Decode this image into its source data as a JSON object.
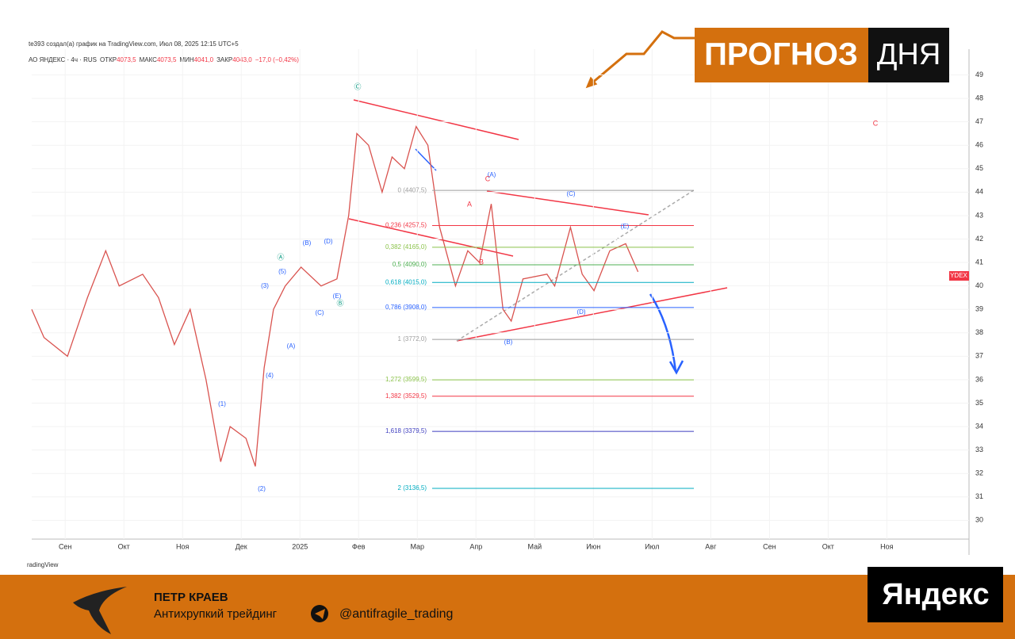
{
  "header": {
    "credit": "te393 создал(а) график на TradingView.com, Июл 08, 2025 12:15 UTC+5",
    "symbol": "АО ЯНДЕКС · 4ч · RUS",
    "ohlc": [
      {
        "label": "ОТКР",
        "value": "4073,5"
      },
      {
        "label": "МАКС",
        "value": "4073,5"
      },
      {
        "label": "МИН",
        "value": "4041,0"
      },
      {
        "label": "ЗАКР",
        "value": "4043,0"
      }
    ],
    "change": "−17,0 (−0,42%)",
    "source": "radingView"
  },
  "banner": {
    "left": "ПРОГНОЗ",
    "right": "ДНЯ"
  },
  "chart_data": {
    "type": "line",
    "color": "#d9534f",
    "price_tag": "YDEX",
    "x": [
      -0.57,
      -0.36,
      0.04,
      0.38,
      0.69,
      0.92,
      1.32,
      1.59,
      1.86,
      2.13,
      2.4,
      2.65,
      2.81,
      3.08,
      3.24,
      3.39,
      3.55,
      3.75,
      4.02,
      4.36,
      4.63,
      4.83,
      4.97,
      5.17,
      5.4,
      5.57,
      5.78,
      5.98,
      6.18,
      6.38,
      6.65,
      6.86,
      7.06,
      7.26,
      7.46,
      7.6,
      7.8,
      8.21,
      8.34,
      8.61,
      8.81,
      9.01,
      9.28,
      9.55,
      9.76
    ],
    "values": [
      39.0,
      37.8,
      37.0,
      39.5,
      41.5,
      40.0,
      40.5,
      39.5,
      37.5,
      39.0,
      36.0,
      32.5,
      34.0,
      33.5,
      32.3,
      36.5,
      39.0,
      40.0,
      40.8,
      40.0,
      40.3,
      43.0,
      46.5,
      46.0,
      44.0,
      45.5,
      45.0,
      46.8,
      46.0,
      42.5,
      40.0,
      41.5,
      41.0,
      43.5,
      39.0,
      38.5,
      40.3,
      40.5,
      40.0,
      42.5,
      40.5,
      39.8,
      41.5,
      41.8,
      40.6
    ],
    "xlim": [
      -0.57,
      15.4
    ],
    "ylim": [
      29.2,
      50.1
    ],
    "xticks": [
      {
        "value": 0,
        "label": "Сен"
      },
      {
        "value": 1,
        "label": "Окт"
      },
      {
        "value": 2,
        "label": "Ноя"
      },
      {
        "value": 3,
        "label": "Дек"
      },
      {
        "value": 4,
        "label": "2025"
      },
      {
        "value": 5,
        "label": "Фев"
      },
      {
        "value": 6,
        "label": "Мар"
      },
      {
        "value": 7,
        "label": "Апр"
      },
      {
        "value": 8,
        "label": "Май"
      },
      {
        "value": 9,
        "label": "Июн"
      },
      {
        "value": 10,
        "label": "Июл"
      },
      {
        "value": 11,
        "label": "Авг"
      },
      {
        "value": 12,
        "label": "Сен"
      },
      {
        "value": 13,
        "label": "Окт"
      },
      {
        "value": 14,
        "label": "Ноя"
      }
    ],
    "yticks": [
      30,
      31,
      32,
      33,
      34,
      35,
      36,
      37,
      38,
      39,
      40,
      41,
      42,
      43,
      44,
      45,
      46,
      47,
      48,
      49
    ],
    "fib_levels": [
      {
        "value": 44.075,
        "label": "0 (4407,5)",
        "color": "#9e9e9e"
      },
      {
        "value": 42.575,
        "label": "0,236 (4257,5)",
        "color": "#f23645"
      },
      {
        "value": 41.65,
        "label": "0,382 (4165,0)",
        "color": "#8bc34a"
      },
      {
        "value": 40.9,
        "label": "0,5 (4090,0)",
        "color": "#4caf50"
      },
      {
        "value": 40.15,
        "label": "0,618 (4015,0)",
        "color": "#00acc1"
      },
      {
        "value": 39.08,
        "label": "0,786 (3908,0)",
        "color": "#2962ff"
      },
      {
        "value": 37.72,
        "label": "1 (3772,0)",
        "color": "#9e9e9e"
      },
      {
        "value": 35.995,
        "label": "1,272 (3599,5)",
        "color": "#8bc34a"
      },
      {
        "value": 35.295,
        "label": "1,382 (3529,5)",
        "color": "#f23645"
      },
      {
        "value": 33.795,
        "label": "1,618 (3379,5)",
        "color": "#3f3fbf"
      },
      {
        "value": 31.365,
        "label": "2 (3136,5)",
        "color": "#00acc1"
      }
    ],
    "annotations": [
      {
        "text": "Ⓒ",
        "color": "#089981"
      },
      {
        "text": "(A)",
        "color": "#2962ff"
      },
      {
        "text": "C",
        "color": "#f23645"
      },
      {
        "text": "A",
        "color": "#f23645"
      },
      {
        "text": "B",
        "color": "#f23645"
      },
      {
        "text": "(C)",
        "color": "#2962ff"
      },
      {
        "text": "(E)",
        "color": "#2962ff"
      },
      {
        "text": "(D)",
        "color": "#2962ff"
      },
      {
        "text": "(B)",
        "color": "#2962ff"
      },
      {
        "text": "(1)",
        "color": "#2962ff"
      },
      {
        "text": "(2)",
        "color": "#2962ff"
      },
      {
        "text": "(3)",
        "color": "#2962ff"
      },
      {
        "text": "(4)",
        "color": "#2962ff"
      },
      {
        "text": "(5)",
        "color": "#2962ff"
      },
      {
        "text": "(A)",
        "color": "#2962ff"
      },
      {
        "text": "(B)",
        "color": "#2962ff"
      },
      {
        "text": "(C)",
        "color": "#2962ff"
      },
      {
        "text": "(D)",
        "color": "#2962ff"
      },
      {
        "text": "(E)",
        "color": "#2962ff"
      },
      {
        "text": "Ⓐ",
        "color": "#089981"
      },
      {
        "text": "Ⓑ",
        "color": "#089981"
      },
      {
        "text": "C",
        "color": "#f23645"
      }
    ]
  },
  "footer": {
    "author": "ПЕТР КРАЕВ",
    "tagline": "Антихрупкий трейдинг",
    "handle": "@antifragile_trading",
    "brand": "Яндекс"
  }
}
